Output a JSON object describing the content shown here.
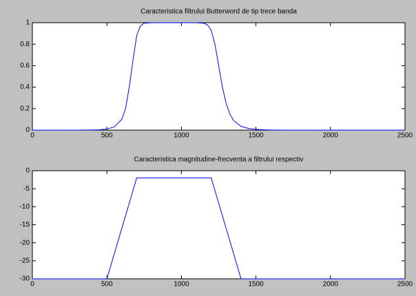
{
  "chart_data": [
    {
      "type": "line",
      "title": "Caracteristica filtrului Butterword de tip trece banda",
      "x": [
        0,
        100,
        200,
        300,
        400,
        450,
        500,
        550,
        600,
        625,
        650,
        675,
        700,
        725,
        750,
        800,
        900,
        1000,
        1100,
        1150,
        1175,
        1200,
        1225,
        1250,
        1275,
        1300,
        1325,
        1350,
        1400,
        1450,
        1500,
        1550,
        1600,
        1700,
        2000,
        2500
      ],
      "series": [
        {
          "color": "#0000ff",
          "values": [
            0,
            0,
            0,
            0,
            0.001,
            0.003,
            0.01,
            0.03,
            0.1,
            0.2,
            0.4,
            0.65,
            0.88,
            0.97,
            0.995,
            1,
            1,
            1,
            1,
            0.995,
            0.98,
            0.93,
            0.8,
            0.6,
            0.4,
            0.25,
            0.15,
            0.09,
            0.035,
            0.015,
            0.007,
            0.003,
            0.001,
            0,
            0,
            0
          ]
        }
      ],
      "xlim": [
        0,
        2500
      ],
      "xticks": [
        0,
        500,
        1000,
        1500,
        2000,
        2500
      ],
      "ylim": [
        0,
        1
      ],
      "yticks": [
        0,
        0.2,
        0.4,
        0.6,
        0.8,
        1
      ]
    },
    {
      "type": "line",
      "title": "Caracteristica magnitudine-frecventa a filtrului respectiv",
      "x": [
        0,
        500,
        700,
        1200,
        1400,
        2500
      ],
      "series": [
        {
          "color": "#0000ff",
          "values": [
            -30,
            -30,
            -2,
            -2,
            -30,
            -30
          ]
        }
      ],
      "xlim": [
        0,
        2500
      ],
      "xticks": [
        0,
        500,
        1000,
        1500,
        2000,
        2500
      ],
      "ylim": [
        -30,
        0
      ],
      "yticks": [
        -30,
        -25,
        -20,
        -15,
        -10,
        -5,
        0
      ]
    }
  ]
}
